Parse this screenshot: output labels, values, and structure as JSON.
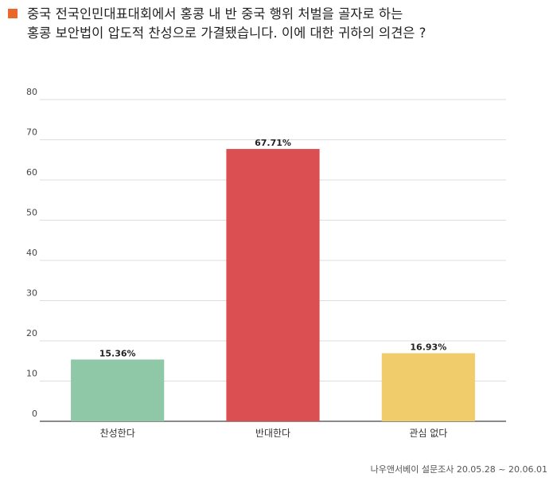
{
  "header": {
    "title_lines": [
      "중국 전국인민대표대회에서 홍콩 내 반 중국 행위 처벌을 골자로 하는",
      "홍콩 보안법이 압도적 찬성으로 가결됐습니다. 이에 대한 귀하의 의견은 ?"
    ],
    "marker_color": "#e8692a"
  },
  "chart_data": {
    "type": "bar",
    "categories": [
      "찬성한다",
      "반대한다",
      "관심 없다"
    ],
    "values": [
      15.36,
      67.71,
      16.93
    ],
    "data_labels": [
      "15.36%",
      "67.71%",
      "16.93%"
    ],
    "colors": [
      "#8fc8a6",
      "#db4f52",
      "#f0cd6a"
    ],
    "ylim": [
      0,
      80
    ],
    "yticks": [
      0,
      10,
      20,
      30,
      40,
      50,
      60,
      70,
      80
    ],
    "grid": true,
    "legend": "none"
  },
  "footer": {
    "source": "나우앤서베이 설문조사 20.05.28 ~ 20.06.01"
  }
}
